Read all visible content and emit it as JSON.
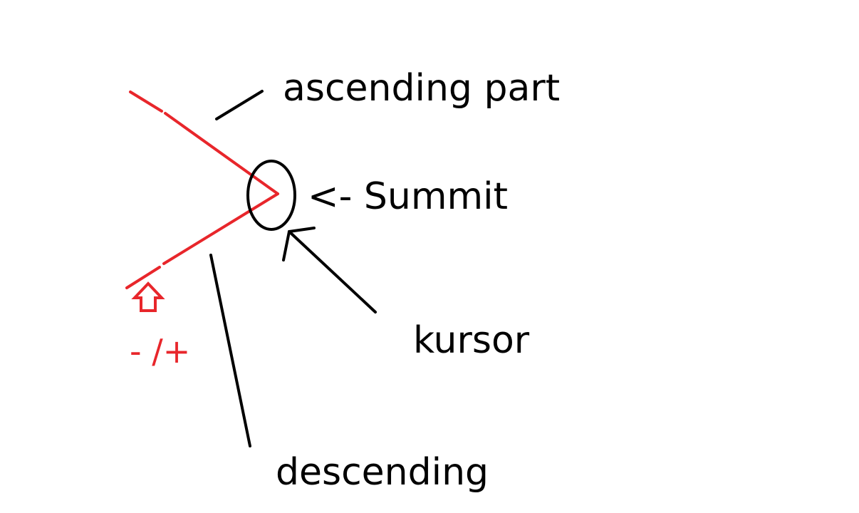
{
  "colors": {
    "background": "#ffffff",
    "red": "#e8262b",
    "black": "#000000"
  },
  "labels": {
    "ascending": "ascending part",
    "summit": "<- Summit",
    "kursor": "kursor",
    "descending": "descending",
    "sign": "- /+"
  },
  "icons": {
    "up_arrow": "up-arrow-outline",
    "summit_marker": "ellipse"
  }
}
